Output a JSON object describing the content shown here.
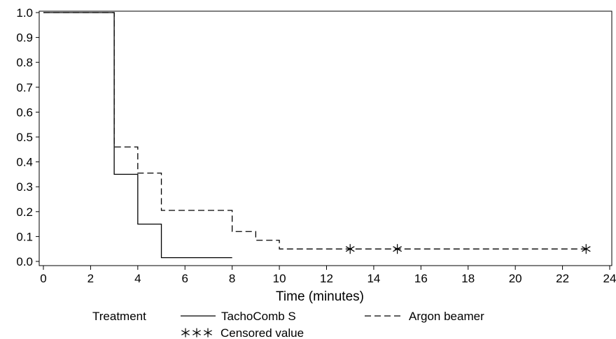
{
  "chart_data": {
    "type": "line",
    "title": "",
    "xlabel": "Time (minutes)",
    "ylabel": "",
    "xlim": [
      0,
      24
    ],
    "ylim": [
      0.0,
      1.0
    ],
    "x_ticks": [
      0,
      2,
      4,
      6,
      8,
      10,
      12,
      14,
      16,
      18,
      20,
      22,
      24
    ],
    "y_ticks": [
      0.0,
      0.1,
      0.2,
      0.3,
      0.4,
      0.5,
      0.6,
      0.7,
      0.8,
      0.9,
      1.0
    ],
    "y_tick_labels": [
      "0.0",
      "0.1",
      "0.2",
      "0.3",
      "0.4",
      "0.5",
      "0.6",
      "0.7",
      "0.8",
      "0.9",
      "1.0"
    ],
    "x_tick_labels": [
      "0",
      "2",
      "4",
      "6",
      "8",
      "10",
      "12",
      "14",
      "16",
      "18",
      "20",
      "22",
      "24"
    ],
    "grid": false,
    "legend_position": "bottom",
    "step": true,
    "series": [
      {
        "name": "TachoComb S",
        "style": "solid",
        "color": "#000000",
        "x": [
          0,
          3,
          4,
          5,
          8
        ],
        "y": [
          1.0,
          0.35,
          0.15,
          0.015,
          0.015
        ],
        "censored_x": []
      },
      {
        "name": "Argon beamer",
        "style": "dashed",
        "color": "#000000",
        "x": [
          0,
          3,
          4,
          5,
          8,
          9,
          10,
          23
        ],
        "y": [
          1.0,
          0.46,
          0.355,
          0.205,
          0.12,
          0.085,
          0.05,
          0.05
        ],
        "censored_x": [
          13,
          15,
          23
        ]
      }
    ],
    "legend": {
      "title": "Treatment",
      "entries": [
        "TachoComb S",
        "Argon beamer"
      ],
      "censored_label": "Censored value"
    }
  }
}
